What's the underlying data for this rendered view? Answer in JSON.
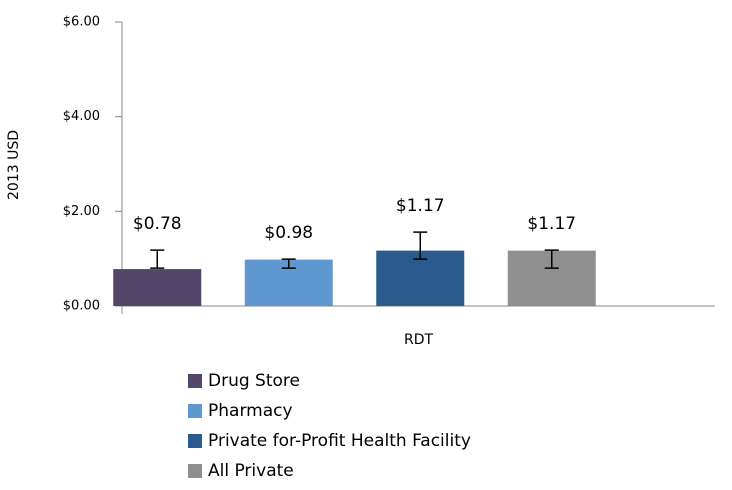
{
  "chart_data": {
    "type": "bar",
    "y_label": "2013 USD",
    "categories": [
      "RDT"
    ],
    "series": [
      {
        "name": "Drug Store",
        "color": "#54456b",
        "values": [
          0.78
        ],
        "value_labels": [
          "$0.78"
        ],
        "error_low": [
          0.8
        ],
        "error_high": [
          1.18
        ]
      },
      {
        "name": "Pharmacy",
        "color": "#5f98d0",
        "values": [
          0.98
        ],
        "value_labels": [
          "$0.98"
        ],
        "error_low": [
          0.8
        ],
        "error_high": [
          0.99
        ]
      },
      {
        "name": "Private for-Profit Health Facility",
        "color": "#2b5b8e",
        "values": [
          1.17
        ],
        "value_labels": [
          "$1.17"
        ],
        "error_low": [
          0.99
        ],
        "error_high": [
          1.56
        ]
      },
      {
        "name": "All Private",
        "color": "#8f8f8f",
        "values": [
          1.17
        ],
        "value_labels": [
          "$1.17"
        ],
        "error_low": [
          0.8
        ],
        "error_high": [
          1.18
        ]
      }
    ],
    "ylim": [
      0,
      6
    ],
    "yticks": [
      {
        "value": 0,
        "label": "$0.00"
      },
      {
        "value": 2,
        "label": "$2.00"
      },
      {
        "value": 4,
        "label": "$4.00"
      },
      {
        "value": 6,
        "label": "$6.00"
      }
    ],
    "legend": "bottom"
  }
}
